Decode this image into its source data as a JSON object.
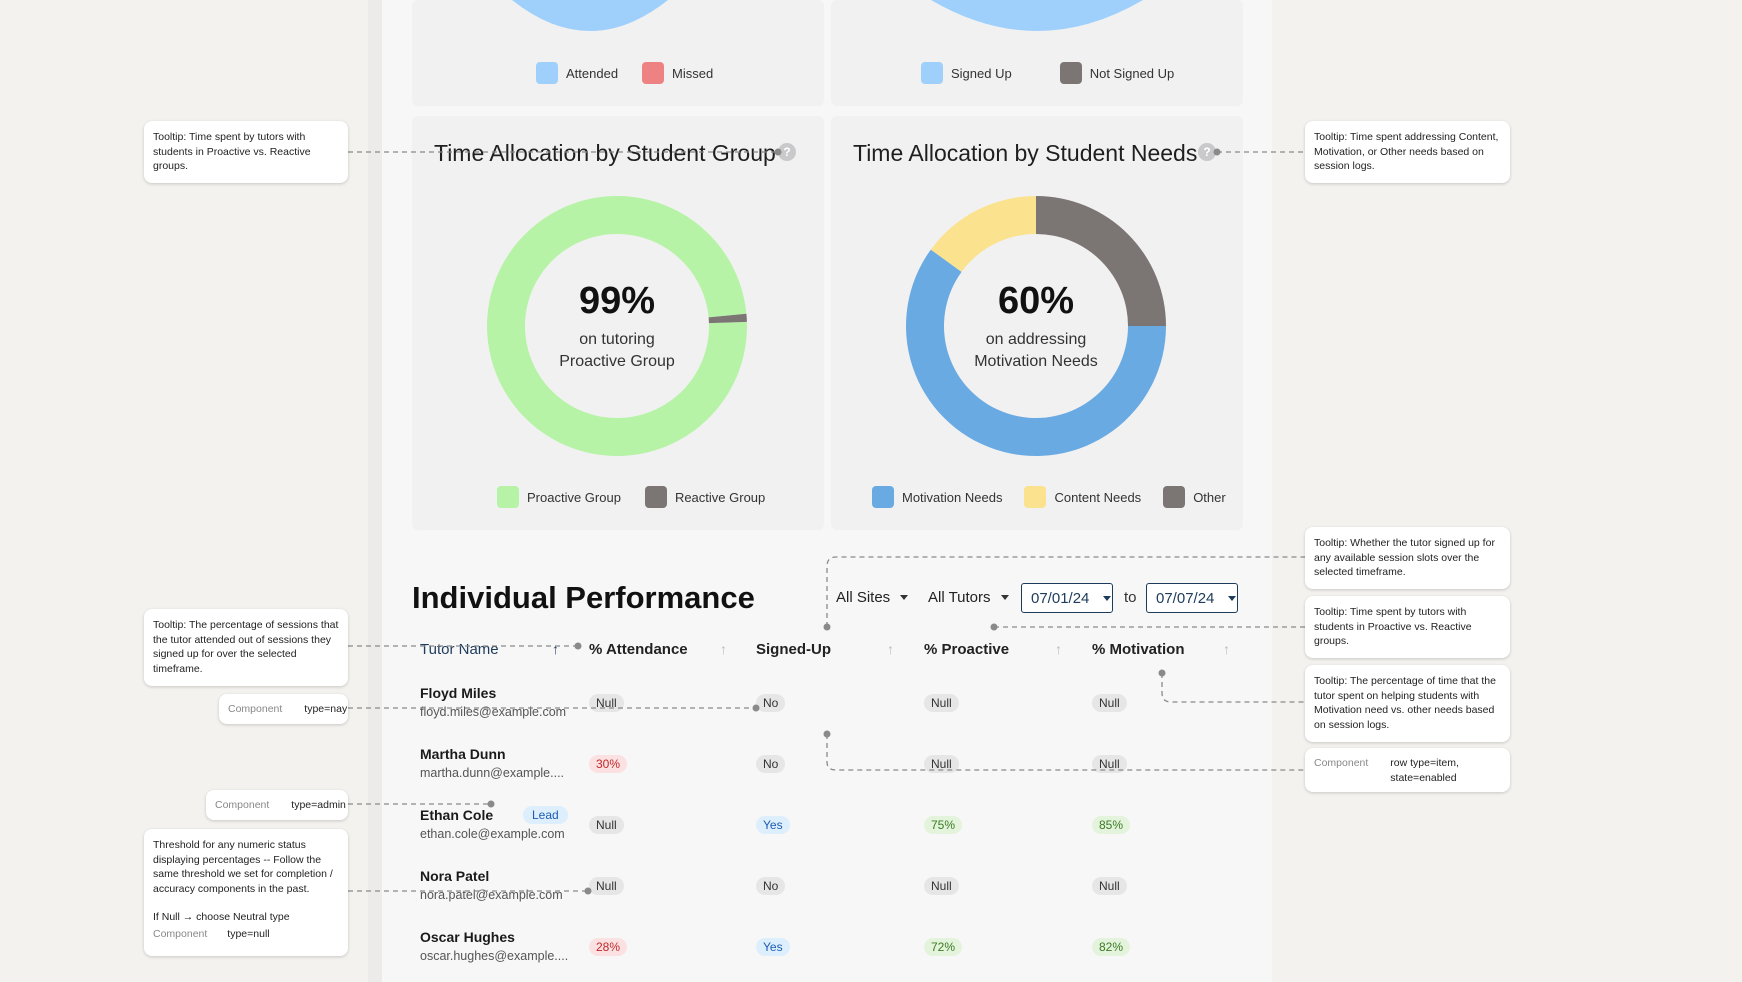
{
  "top_charts": {
    "left_legend": [
      {
        "label": "Attended",
        "color": "#9fd0fb"
      },
      {
        "label": "Missed",
        "color": "#ee8282"
      }
    ],
    "right_legend": [
      {
        "label": "Signed Up",
        "color": "#9fd0fb"
      },
      {
        "label": "Not Signed Up",
        "color": "#7b7573"
      }
    ]
  },
  "chart_data": [
    {
      "type": "pie",
      "title": "Time Allocation by Student Group",
      "center_value": "99%",
      "center_line1": "on tutoring",
      "center_line2": "Proactive Group",
      "categories": [
        "Proactive Group",
        "Reactive Group"
      ],
      "values": [
        99,
        1
      ],
      "colors": [
        "#b7f3a7",
        "#7b7573"
      ],
      "legend_position": "bottom"
    },
    {
      "type": "pie",
      "title": "Time Allocation by Student Needs",
      "center_value": "60%",
      "center_line1": "on addressing",
      "center_line2": "Motivation Needs",
      "categories": [
        "Motivation Needs",
        "Content Needs",
        "Other"
      ],
      "values": [
        60,
        15,
        25
      ],
      "colors": [
        "#6aaae3",
        "#fbe28f",
        "#7b7573"
      ],
      "legend_position": "bottom"
    }
  ],
  "help_icon": "?",
  "performance": {
    "title": "Individual Performance",
    "filters": {
      "sites": "All Sites",
      "tutors": "All Tutors",
      "from_date": "07/01/24",
      "to_label": "to",
      "to_date": "07/07/24"
    },
    "columns": [
      "Tutor Name",
      "% Attendance",
      "Signed-Up",
      "% Proactive",
      "% Motivation"
    ],
    "sort_arrow": "↑",
    "rows": [
      {
        "name": "Floyd Miles",
        "email": "floyd.miles@example.com",
        "badge": "",
        "attendance": "Null",
        "attendance_type": "null",
        "signed": "No",
        "signed_type": "no",
        "proactive": "Null",
        "proactive_type": "null",
        "motivation": "Null",
        "motivation_type": "null"
      },
      {
        "name": "Martha Dunn",
        "email": "martha.dunn@example....",
        "badge": "",
        "attendance": "30%",
        "attendance_type": "red",
        "signed": "No",
        "signed_type": "no",
        "proactive": "Null",
        "proactive_type": "null",
        "motivation": "Null",
        "motivation_type": "null"
      },
      {
        "name": "Ethan Cole",
        "email": "ethan.cole@example.com",
        "badge": "Lead",
        "attendance": "Null",
        "attendance_type": "null",
        "signed": "Yes",
        "signed_type": "blue",
        "proactive": "75%",
        "proactive_type": "green",
        "motivation": "85%",
        "motivation_type": "green"
      },
      {
        "name": "Nora Patel",
        "email": "nora.patel@example.com",
        "badge": "",
        "attendance": "Null",
        "attendance_type": "null",
        "signed": "No",
        "signed_type": "no",
        "proactive": "Null",
        "proactive_type": "null",
        "motivation": "Null",
        "motivation_type": "null"
      },
      {
        "name": "Oscar Hughes",
        "email": "oscar.hughes@example....",
        "badge": "",
        "attendance": "28%",
        "attendance_type": "red",
        "signed": "Yes",
        "signed_type": "blue",
        "proactive": "72%",
        "proactive_type": "green",
        "motivation": "82%",
        "motivation_type": "green"
      }
    ]
  },
  "annotations": {
    "tooltip_group_left": "Tooltip: Time spent by tutors with students in Proactive vs. Reactive groups.",
    "tooltip_needs_right": "Tooltip: Time spent addressing Content, Motivation, or Other needs based on session logs.",
    "tooltip_signed_up": "Tooltip: Whether the tutor signed up for any available session slots over the selected timeframe.",
    "tooltip_proactive": "Tooltip: Time spent by tutors with students in Proactive vs. Reactive groups.",
    "tooltip_motivation": "Tooltip: The percentage of time that the tutor spent on helping students with Motivation need vs. other needs based on session logs.",
    "tooltip_attendance": "Tooltip: The percentage of sessions that the tutor attended out of sessions they signed up for over the selected timeframe.",
    "component_label": "Component",
    "component_nay": "type=nay",
    "component_admin": "type=admin",
    "component_row": "row type=item, state=enabled",
    "threshold_text": "Threshold for any numeric status displaying percentages -- Follow the same threshold we set for completion / accuracy components in the past.",
    "threshold_null_rule": "If Null → choose Neutral type",
    "component_null": "type=null"
  }
}
